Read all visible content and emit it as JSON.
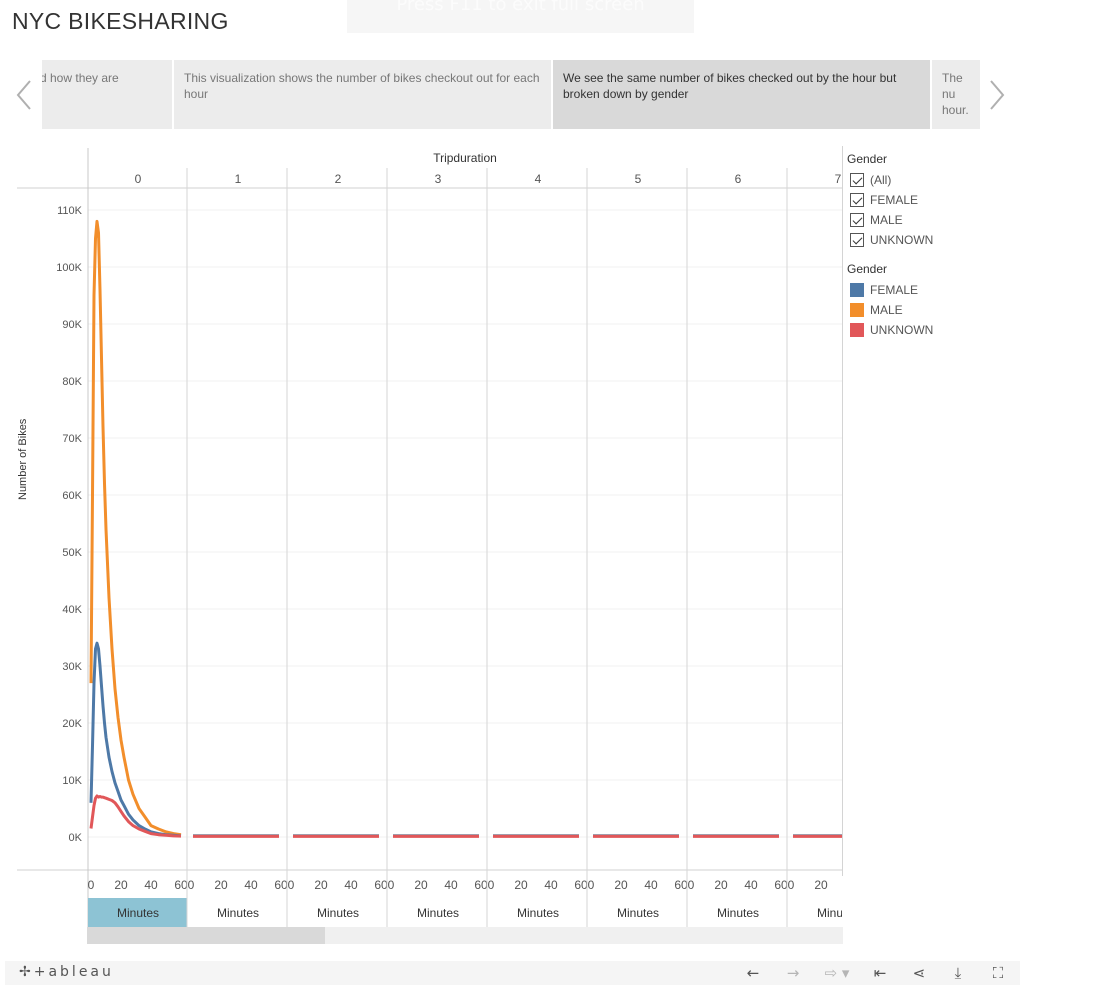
{
  "banner": {
    "text": "Press  F11  to exit full screen"
  },
  "page": {
    "title": "NYC BIKESHARING"
  },
  "story": {
    "points": [
      {
        "text": "and how they are",
        "visible_text": "d how they are"
      },
      {
        "text": "This visualization shows the number of bikes checkout out for each hour"
      },
      {
        "text": "We see the same number of bikes checked out by the hour but broken down by gender"
      },
      {
        "text": "The nu hour."
      }
    ]
  },
  "chart": {
    "column_header_title": "Tripduration",
    "y_axis_title": "Number of Bikes",
    "x_axis_unit": "Minutes"
  },
  "legend": {
    "filter_title": "Gender",
    "filter_items": [
      "(All)",
      "FEMALE",
      "MALE",
      "UNKNOWN"
    ],
    "color_title": "Gender",
    "color_items": [
      {
        "label": "FEMALE",
        "color": "#4e79a7"
      },
      {
        "label": "MALE",
        "color": "#f28e2b"
      },
      {
        "label": "UNKNOWN",
        "color": "#e15759"
      }
    ]
  },
  "toolbar": {
    "logo": "+ableau"
  },
  "chart_data": {
    "type": "line",
    "title": "",
    "facet_title": "Tripduration",
    "facets": [
      "0",
      "1",
      "2",
      "3",
      "4",
      "5",
      "6",
      "7"
    ],
    "xlabel": "Minutes",
    "ylabel": "Number of Bikes",
    "x_ticks": [
      0,
      20,
      40,
      60
    ],
    "ylim": [
      0,
      110000
    ],
    "y_ticks": [
      "0K",
      "10K",
      "20K",
      "30K",
      "40K",
      "50K",
      "60K",
      "70K",
      "80K",
      "90K",
      "100K",
      "110K"
    ],
    "x": [
      0,
      1,
      2,
      3,
      4,
      5,
      6,
      7,
      8,
      9,
      10,
      12,
      14,
      16,
      18,
      20,
      22,
      25,
      28,
      32,
      36,
      40,
      45,
      50,
      55,
      60
    ],
    "series": [
      {
        "name": "MALE",
        "color": "#f28e2b",
        "values": [
          27000,
          60000,
          95000,
          105000,
          108000,
          106000,
          96000,
          84000,
          72000,
          62000,
          54000,
          42000,
          33000,
          26000,
          21000,
          17000,
          14000,
          10000,
          7500,
          5000,
          3500,
          2000,
          1400,
          900,
          600,
          400
        ]
      },
      {
        "name": "FEMALE",
        "color": "#4e79a7",
        "values": [
          6000,
          16000,
          27000,
          33000,
          34000,
          33000,
          30000,
          26500,
          23000,
          20000,
          17500,
          14000,
          11500,
          9500,
          8000,
          6500,
          5500,
          4000,
          3000,
          2000,
          1400,
          900,
          600,
          400,
          300,
          200
        ]
      },
      {
        "name": "UNKNOWN",
        "color": "#e15759",
        "values": [
          1500,
          3500,
          5500,
          6800,
          7200,
          7000,
          7100,
          7000,
          7000,
          6900,
          6800,
          6600,
          6400,
          6000,
          5300,
          4500,
          3700,
          2700,
          2000,
          1400,
          1000,
          600,
          400,
          300,
          200,
          150
        ]
      }
    ],
    "other_facets_values": {
      "MALE": 200,
      "FEMALE": 200,
      "UNKNOWN": 100
    },
    "legend_position": "right",
    "grid": true
  }
}
